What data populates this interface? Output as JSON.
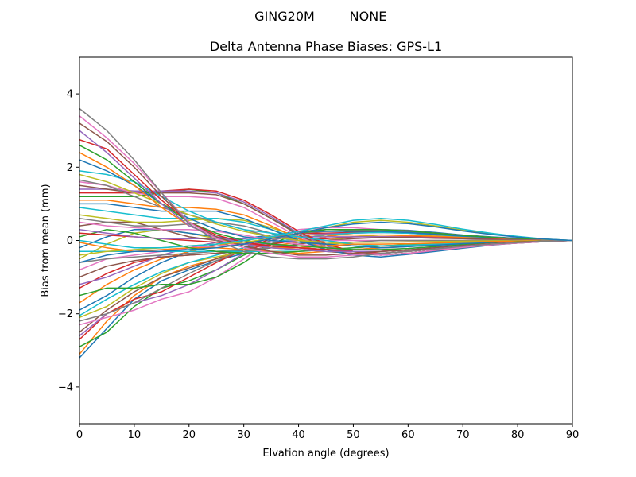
{
  "figure": {
    "suptitle_left": "GING20M",
    "suptitle_right": "NONE"
  },
  "chart_data": {
    "type": "line",
    "title": "Delta Antenna Phase Biases: GPS-L1",
    "xlabel": "Elvation angle (degrees)",
    "ylabel": "Bias from mean (mm)",
    "xlim": [
      0,
      90
    ],
    "ylim": [
      -5,
      5
    ],
    "xticks": [
      0,
      10,
      20,
      30,
      40,
      50,
      60,
      70,
      80,
      90
    ],
    "yticks": [
      -4,
      -2,
      0,
      2,
      4
    ],
    "xtick_labels": [
      "0",
      "10",
      "20",
      "30",
      "40",
      "50",
      "60",
      "70",
      "80",
      "90"
    ],
    "ytick_labels": [
      "−4",
      "−2",
      "0",
      "2",
      "4"
    ],
    "grid": false,
    "legend": "none",
    "x": [
      0,
      5,
      10,
      15,
      20,
      25,
      30,
      35,
      40,
      45,
      50,
      55,
      60,
      65,
      70,
      75,
      80,
      85,
      90
    ],
    "colors": [
      "#1f77b4",
      "#ff7f0e",
      "#2ca02c",
      "#d62728",
      "#9467bd",
      "#8c564b",
      "#e377c2",
      "#7f7f7f",
      "#bcbd22",
      "#17becf"
    ],
    "series": [
      {
        "values": [
          -3.2,
          -2.4,
          -1.6,
          -1.1,
          -0.8,
          -0.55,
          -0.35,
          -0.2,
          -0.1,
          0.1,
          0.25,
          0.3,
          0.28,
          0.22,
          0.15,
          0.1,
          0.06,
          0.03,
          0.0
        ]
      },
      {
        "values": [
          -3.1,
          -2.2,
          -1.5,
          -1.0,
          -0.7,
          -0.5,
          -0.3,
          -0.15,
          -0.05,
          0.1,
          0.2,
          0.25,
          0.23,
          0.18,
          0.13,
          0.08,
          0.05,
          0.02,
          0.0
        ]
      },
      {
        "values": [
          -2.9,
          -2.5,
          -1.8,
          -1.3,
          -1.1,
          -0.8,
          -0.4,
          -0.1,
          0.05,
          0.15,
          0.25,
          0.28,
          0.26,
          0.2,
          0.14,
          0.09,
          0.05,
          0.02,
          0.0
        ]
      },
      {
        "values": [
          -2.7,
          -2.0,
          -1.6,
          -1.4,
          -1.0,
          -0.6,
          -0.25,
          0.05,
          0.2,
          0.2,
          0.22,
          0.24,
          0.2,
          0.16,
          0.11,
          0.07,
          0.04,
          0.02,
          0.0
        ]
      },
      {
        "values": [
          -2.6,
          -2.0,
          -1.7,
          -1.5,
          -1.2,
          -0.8,
          -0.35,
          0.0,
          0.15,
          0.18,
          0.2,
          0.22,
          0.2,
          0.15,
          0.1,
          0.07,
          0.04,
          0.02,
          0.0
        ]
      },
      {
        "values": [
          -2.5,
          -1.9,
          -1.4,
          -1.0,
          -0.75,
          -0.5,
          -0.2,
          0.1,
          0.25,
          0.3,
          0.3,
          0.3,
          0.27,
          0.2,
          0.14,
          0.09,
          0.05,
          0.02,
          0.0
        ]
      },
      {
        "values": [
          -2.3,
          -2.1,
          -1.9,
          -1.6,
          -1.4,
          -1.0,
          -0.5,
          0.0,
          0.3,
          0.35,
          0.35,
          0.3,
          0.26,
          0.2,
          0.14,
          0.09,
          0.05,
          0.02,
          0.0
        ]
      },
      {
        "values": [
          -2.2,
          -2.0,
          -1.7,
          -1.3,
          -0.9,
          -0.55,
          -0.25,
          0.0,
          0.2,
          0.25,
          0.28,
          0.27,
          0.24,
          0.19,
          0.13,
          0.08,
          0.05,
          0.02,
          0.0
        ]
      },
      {
        "values": [
          -2.1,
          -1.8,
          -1.3,
          -0.9,
          -0.6,
          -0.45,
          -0.3,
          -0.2,
          -0.1,
          0.0,
          0.1,
          0.15,
          0.15,
          0.12,
          0.09,
          0.06,
          0.03,
          0.01,
          0.0
        ]
      },
      {
        "values": [
          -2.05,
          -1.6,
          -1.2,
          -0.85,
          -0.6,
          -0.4,
          -0.2,
          -0.05,
          0.05,
          0.15,
          0.2,
          0.22,
          0.2,
          0.16,
          0.11,
          0.07,
          0.04,
          0.02,
          0.0
        ]
      },
      {
        "values": [
          -1.9,
          -1.5,
          -1.0,
          -0.6,
          -0.3,
          -0.1,
          0.05,
          0.15,
          0.25,
          0.25,
          0.25,
          0.25,
          0.22,
          0.17,
          0.12,
          0.08,
          0.05,
          0.02,
          0.0
        ]
      },
      {
        "values": [
          -1.7,
          -1.2,
          -0.8,
          -0.5,
          -0.3,
          -0.15,
          0.0,
          0.1,
          0.15,
          0.15,
          0.15,
          0.15,
          0.13,
          0.11,
          0.08,
          0.05,
          0.03,
          0.01,
          0.0
        ]
      },
      {
        "values": [
          -1.5,
          -1.3,
          -1.3,
          -1.2,
          -1.2,
          -1.0,
          -0.6,
          -0.1,
          0.2,
          0.3,
          0.3,
          0.3,
          0.26,
          0.2,
          0.14,
          0.09,
          0.05,
          0.02,
          0.0
        ]
      },
      {
        "values": [
          -1.3,
          -0.9,
          -0.6,
          -0.45,
          -0.4,
          -0.35,
          -0.25,
          -0.1,
          0.0,
          0.05,
          0.1,
          0.1,
          0.1,
          0.08,
          0.06,
          0.04,
          0.02,
          0.01,
          0.0
        ]
      },
      {
        "values": [
          -1.2,
          -1.0,
          -0.7,
          -0.4,
          -0.2,
          -0.05,
          0.05,
          0.1,
          0.1,
          0.1,
          0.1,
          0.1,
          0.09,
          0.07,
          0.05,
          0.03,
          0.02,
          0.01,
          0.0
        ]
      },
      {
        "values": [
          -1.0,
          -0.7,
          -0.55,
          -0.45,
          -0.4,
          -0.35,
          -0.3,
          -0.2,
          -0.1,
          0.0,
          0.05,
          0.08,
          0.08,
          0.06,
          0.05,
          0.03,
          0.02,
          0.01,
          0.0
        ]
      },
      {
        "values": [
          -0.8,
          -0.5,
          -0.4,
          -0.3,
          -0.2,
          -0.15,
          -0.1,
          -0.05,
          0.0,
          0.0,
          0.0,
          0.0,
          0.0,
          0.0,
          0.0,
          0.0,
          0.0,
          0.0,
          0.0
        ]
      },
      {
        "values": [
          -0.6,
          -0.5,
          -0.45,
          -0.4,
          -0.35,
          -0.3,
          -0.25,
          -0.2,
          -0.15,
          -0.1,
          -0.05,
          0.0,
          0.0,
          0.0,
          0.0,
          0.0,
          0.0,
          0.0,
          0.0
        ]
      },
      {
        "values": [
          -0.5,
          -0.1,
          0.2,
          0.3,
          0.2,
          0.05,
          -0.1,
          -0.15,
          -0.15,
          -0.1,
          -0.05,
          -0.05,
          -0.04,
          -0.03,
          -0.02,
          -0.01,
          -0.01,
          0.0,
          0.0
        ]
      },
      {
        "values": [
          -0.3,
          -0.3,
          -0.3,
          -0.3,
          -0.3,
          -0.3,
          -0.3,
          -0.3,
          -0.3,
          -0.25,
          -0.2,
          -0.15,
          -0.12,
          -0.1,
          -0.07,
          -0.05,
          -0.03,
          -0.01,
          0.0
        ]
      },
      {
        "values": [
          -0.2,
          0.1,
          0.3,
          0.3,
          0.2,
          0.1,
          0.0,
          -0.1,
          -0.2,
          -0.25,
          -0.25,
          -0.2,
          -0.16,
          -0.12,
          -0.08,
          -0.05,
          -0.03,
          -0.01,
          0.0
        ]
      },
      {
        "values": [
          -0.05,
          -0.2,
          -0.3,
          -0.25,
          -0.2,
          -0.2,
          -0.25,
          -0.3,
          -0.35,
          -0.3,
          -0.25,
          -0.2,
          -0.16,
          -0.12,
          -0.08,
          -0.05,
          -0.03,
          -0.01,
          0.0
        ]
      },
      {
        "values": [
          0.1,
          0.3,
          0.2,
          0.0,
          -0.2,
          -0.3,
          -0.35,
          -0.35,
          -0.3,
          -0.25,
          -0.2,
          -0.15,
          -0.12,
          -0.09,
          -0.06,
          -0.04,
          -0.02,
          -0.01,
          0.0
        ]
      },
      {
        "values": [
          0.2,
          0.15,
          0.1,
          0.05,
          0.0,
          -0.05,
          -0.1,
          -0.15,
          -0.2,
          -0.25,
          -0.3,
          -0.3,
          -0.26,
          -0.2,
          -0.14,
          -0.09,
          -0.05,
          -0.02,
          0.0
        ]
      },
      {
        "values": [
          0.3,
          0.2,
          0.1,
          0.05,
          0.05,
          0.05,
          0.0,
          -0.1,
          -0.2,
          -0.3,
          -0.35,
          -0.35,
          -0.3,
          -0.23,
          -0.16,
          -0.1,
          -0.06,
          -0.02,
          0.0
        ]
      },
      {
        "values": [
          0.4,
          0.5,
          0.5,
          0.3,
          0.1,
          0.0,
          -0.1,
          -0.2,
          -0.25,
          -0.3,
          -0.35,
          -0.35,
          -0.3,
          -0.23,
          -0.16,
          -0.1,
          -0.06,
          -0.02,
          0.0
        ]
      },
      {
        "values": [
          0.5,
          0.4,
          0.35,
          0.3,
          0.3,
          0.25,
          0.15,
          0.0,
          -0.1,
          -0.2,
          -0.25,
          -0.25,
          -0.22,
          -0.17,
          -0.12,
          -0.08,
          -0.04,
          -0.02,
          0.0
        ]
      },
      {
        "values": [
          0.6,
          0.5,
          0.4,
          0.4,
          0.45,
          0.5,
          0.4,
          0.2,
          0.0,
          -0.2,
          -0.3,
          -0.35,
          -0.3,
          -0.23,
          -0.16,
          -0.1,
          -0.06,
          -0.02,
          0.0
        ]
      },
      {
        "values": [
          0.7,
          0.6,
          0.5,
          0.5,
          0.55,
          0.6,
          0.55,
          0.35,
          0.1,
          -0.15,
          -0.3,
          -0.35,
          -0.3,
          -0.23,
          -0.16,
          -0.1,
          -0.06,
          -0.02,
          0.0
        ]
      },
      {
        "values": [
          0.9,
          0.8,
          0.7,
          0.6,
          0.6,
          0.6,
          0.5,
          0.3,
          0.05,
          -0.2,
          -0.35,
          -0.4,
          -0.35,
          -0.27,
          -0.19,
          -0.12,
          -0.07,
          -0.03,
          0.0
        ]
      },
      {
        "values": [
          1.0,
          1.0,
          0.9,
          0.8,
          0.8,
          0.8,
          0.6,
          0.3,
          0.0,
          -0.25,
          -0.4,
          -0.45,
          -0.38,
          -0.3,
          -0.21,
          -0.13,
          -0.07,
          -0.03,
          0.0
        ]
      },
      {
        "values": [
          1.1,
          1.1,
          1.0,
          0.9,
          0.9,
          0.85,
          0.7,
          0.4,
          0.05,
          -0.2,
          -0.35,
          -0.4,
          -0.35,
          -0.27,
          -0.19,
          -0.12,
          -0.07,
          -0.03,
          0.0
        ]
      },
      {
        "values": [
          1.2,
          1.2,
          1.2,
          1.3,
          1.4,
          1.3,
          1.0,
          0.6,
          0.2,
          -0.1,
          -0.3,
          -0.35,
          -0.3,
          -0.23,
          -0.16,
          -0.1,
          -0.06,
          -0.02,
          0.0
        ]
      },
      {
        "values": [
          1.3,
          1.3,
          1.3,
          1.35,
          1.4,
          1.35,
          1.1,
          0.7,
          0.25,
          -0.1,
          -0.3,
          -0.35,
          -0.3,
          -0.23,
          -0.16,
          -0.1,
          -0.06,
          -0.02,
          0.0
        ]
      },
      {
        "values": [
          1.4,
          1.4,
          1.35,
          1.35,
          1.35,
          1.3,
          1.05,
          0.65,
          0.2,
          -0.15,
          -0.35,
          -0.4,
          -0.35,
          -0.27,
          -0.19,
          -0.12,
          -0.07,
          -0.03,
          0.0
        ]
      },
      {
        "values": [
          1.5,
          1.4,
          1.3,
          1.3,
          1.3,
          1.25,
          1.0,
          0.6,
          0.15,
          -0.2,
          -0.35,
          -0.4,
          -0.35,
          -0.27,
          -0.19,
          -0.12,
          -0.07,
          -0.03,
          0.0
        ]
      },
      {
        "values": [
          1.6,
          1.5,
          1.3,
          1.2,
          1.2,
          1.15,
          0.9,
          0.5,
          0.1,
          -0.2,
          -0.35,
          -0.4,
          -0.35,
          -0.27,
          -0.19,
          -0.12,
          -0.07,
          -0.03,
          0.0
        ]
      },
      {
        "values": [
          1.65,
          1.5,
          1.2,
          0.9,
          0.7,
          0.5,
          0.3,
          0.1,
          0.0,
          -0.1,
          -0.15,
          -0.2,
          -0.17,
          -0.13,
          -0.09,
          -0.06,
          -0.03,
          -0.01,
          0.0
        ]
      },
      {
        "values": [
          1.8,
          1.6,
          1.3,
          1.0,
          0.7,
          0.45,
          0.25,
          0.1,
          0.0,
          -0.05,
          -0.1,
          -0.15,
          -0.13,
          -0.1,
          -0.07,
          -0.04,
          -0.02,
          -0.01,
          0.0
        ]
      },
      {
        "values": [
          1.9,
          1.8,
          1.6,
          1.2,
          0.8,
          0.5,
          0.3,
          0.2,
          0.1,
          0.0,
          -0.1,
          -0.15,
          -0.13,
          -0.1,
          -0.07,
          -0.04,
          -0.02,
          -0.01,
          0.0
        ]
      },
      {
        "values": [
          2.2,
          1.9,
          1.5,
          1.0,
          0.6,
          0.3,
          0.1,
          0.0,
          -0.05,
          -0.1,
          -0.15,
          -0.2,
          -0.17,
          -0.13,
          -0.09,
          -0.06,
          -0.03,
          -0.01,
          0.0
        ]
      },
      {
        "values": [
          2.4,
          2.0,
          1.5,
          0.9,
          0.4,
          0.1,
          -0.1,
          -0.2,
          -0.2,
          -0.15,
          -0.1,
          -0.1,
          -0.09,
          -0.07,
          -0.05,
          -0.03,
          -0.02,
          -0.01,
          0.0
        ]
      },
      {
        "values": [
          2.6,
          2.2,
          1.6,
          1.0,
          0.5,
          0.2,
          0.0,
          -0.1,
          -0.15,
          -0.2,
          -0.25,
          -0.25,
          -0.22,
          -0.17,
          -0.12,
          -0.08,
          -0.04,
          -0.02,
          0.0
        ]
      },
      {
        "values": [
          2.75,
          2.5,
          1.8,
          1.1,
          0.5,
          0.15,
          -0.05,
          -0.15,
          -0.2,
          -0.25,
          -0.3,
          -0.3,
          -0.26,
          -0.2,
          -0.14,
          -0.09,
          -0.05,
          -0.02,
          0.0
        ]
      },
      {
        "values": [
          3.0,
          2.4,
          1.7,
          1.0,
          0.4,
          0.1,
          -0.1,
          -0.2,
          -0.25,
          -0.3,
          -0.3,
          -0.3,
          -0.26,
          -0.2,
          -0.14,
          -0.09,
          -0.05,
          -0.02,
          0.0
        ]
      },
      {
        "values": [
          3.2,
          2.7,
          2.0,
          1.2,
          0.5,
          0.1,
          -0.15,
          -0.3,
          -0.4,
          -0.4,
          -0.35,
          -0.3,
          -0.26,
          -0.2,
          -0.14,
          -0.09,
          -0.05,
          -0.02,
          0.0
        ]
      },
      {
        "values": [
          3.4,
          2.8,
          2.1,
          1.3,
          0.5,
          0.05,
          -0.2,
          -0.35,
          -0.45,
          -0.45,
          -0.4,
          -0.35,
          -0.3,
          -0.23,
          -0.16,
          -0.1,
          -0.06,
          -0.02,
          0.0
        ]
      },
      {
        "values": [
          3.6,
          3.0,
          2.2,
          1.3,
          0.45,
          0.0,
          -0.3,
          -0.45,
          -0.5,
          -0.5,
          -0.45,
          -0.35,
          -0.3,
          -0.23,
          -0.16,
          -0.1,
          -0.06,
          -0.02,
          0.0
        ]
      },
      {
        "values": [
          -0.4,
          -0.3,
          -0.25,
          -0.2,
          -0.15,
          -0.1,
          -0.05,
          0.05,
          0.2,
          0.35,
          0.5,
          0.55,
          0.5,
          0.4,
          0.28,
          0.18,
          0.1,
          0.04,
          0.0
        ]
      },
      {
        "values": [
          0.0,
          -0.1,
          -0.2,
          -0.2,
          -0.15,
          -0.1,
          0.0,
          0.1,
          0.25,
          0.4,
          0.55,
          0.6,
          0.55,
          0.44,
          0.31,
          0.2,
          0.11,
          0.04,
          0.0
        ]
      },
      {
        "values": [
          -0.6,
          -0.4,
          -0.3,
          -0.3,
          -0.25,
          -0.2,
          -0.1,
          0.05,
          0.2,
          0.35,
          0.45,
          0.5,
          0.46,
          0.37,
          0.26,
          0.17,
          0.09,
          0.04,
          0.0
        ]
      }
    ]
  }
}
